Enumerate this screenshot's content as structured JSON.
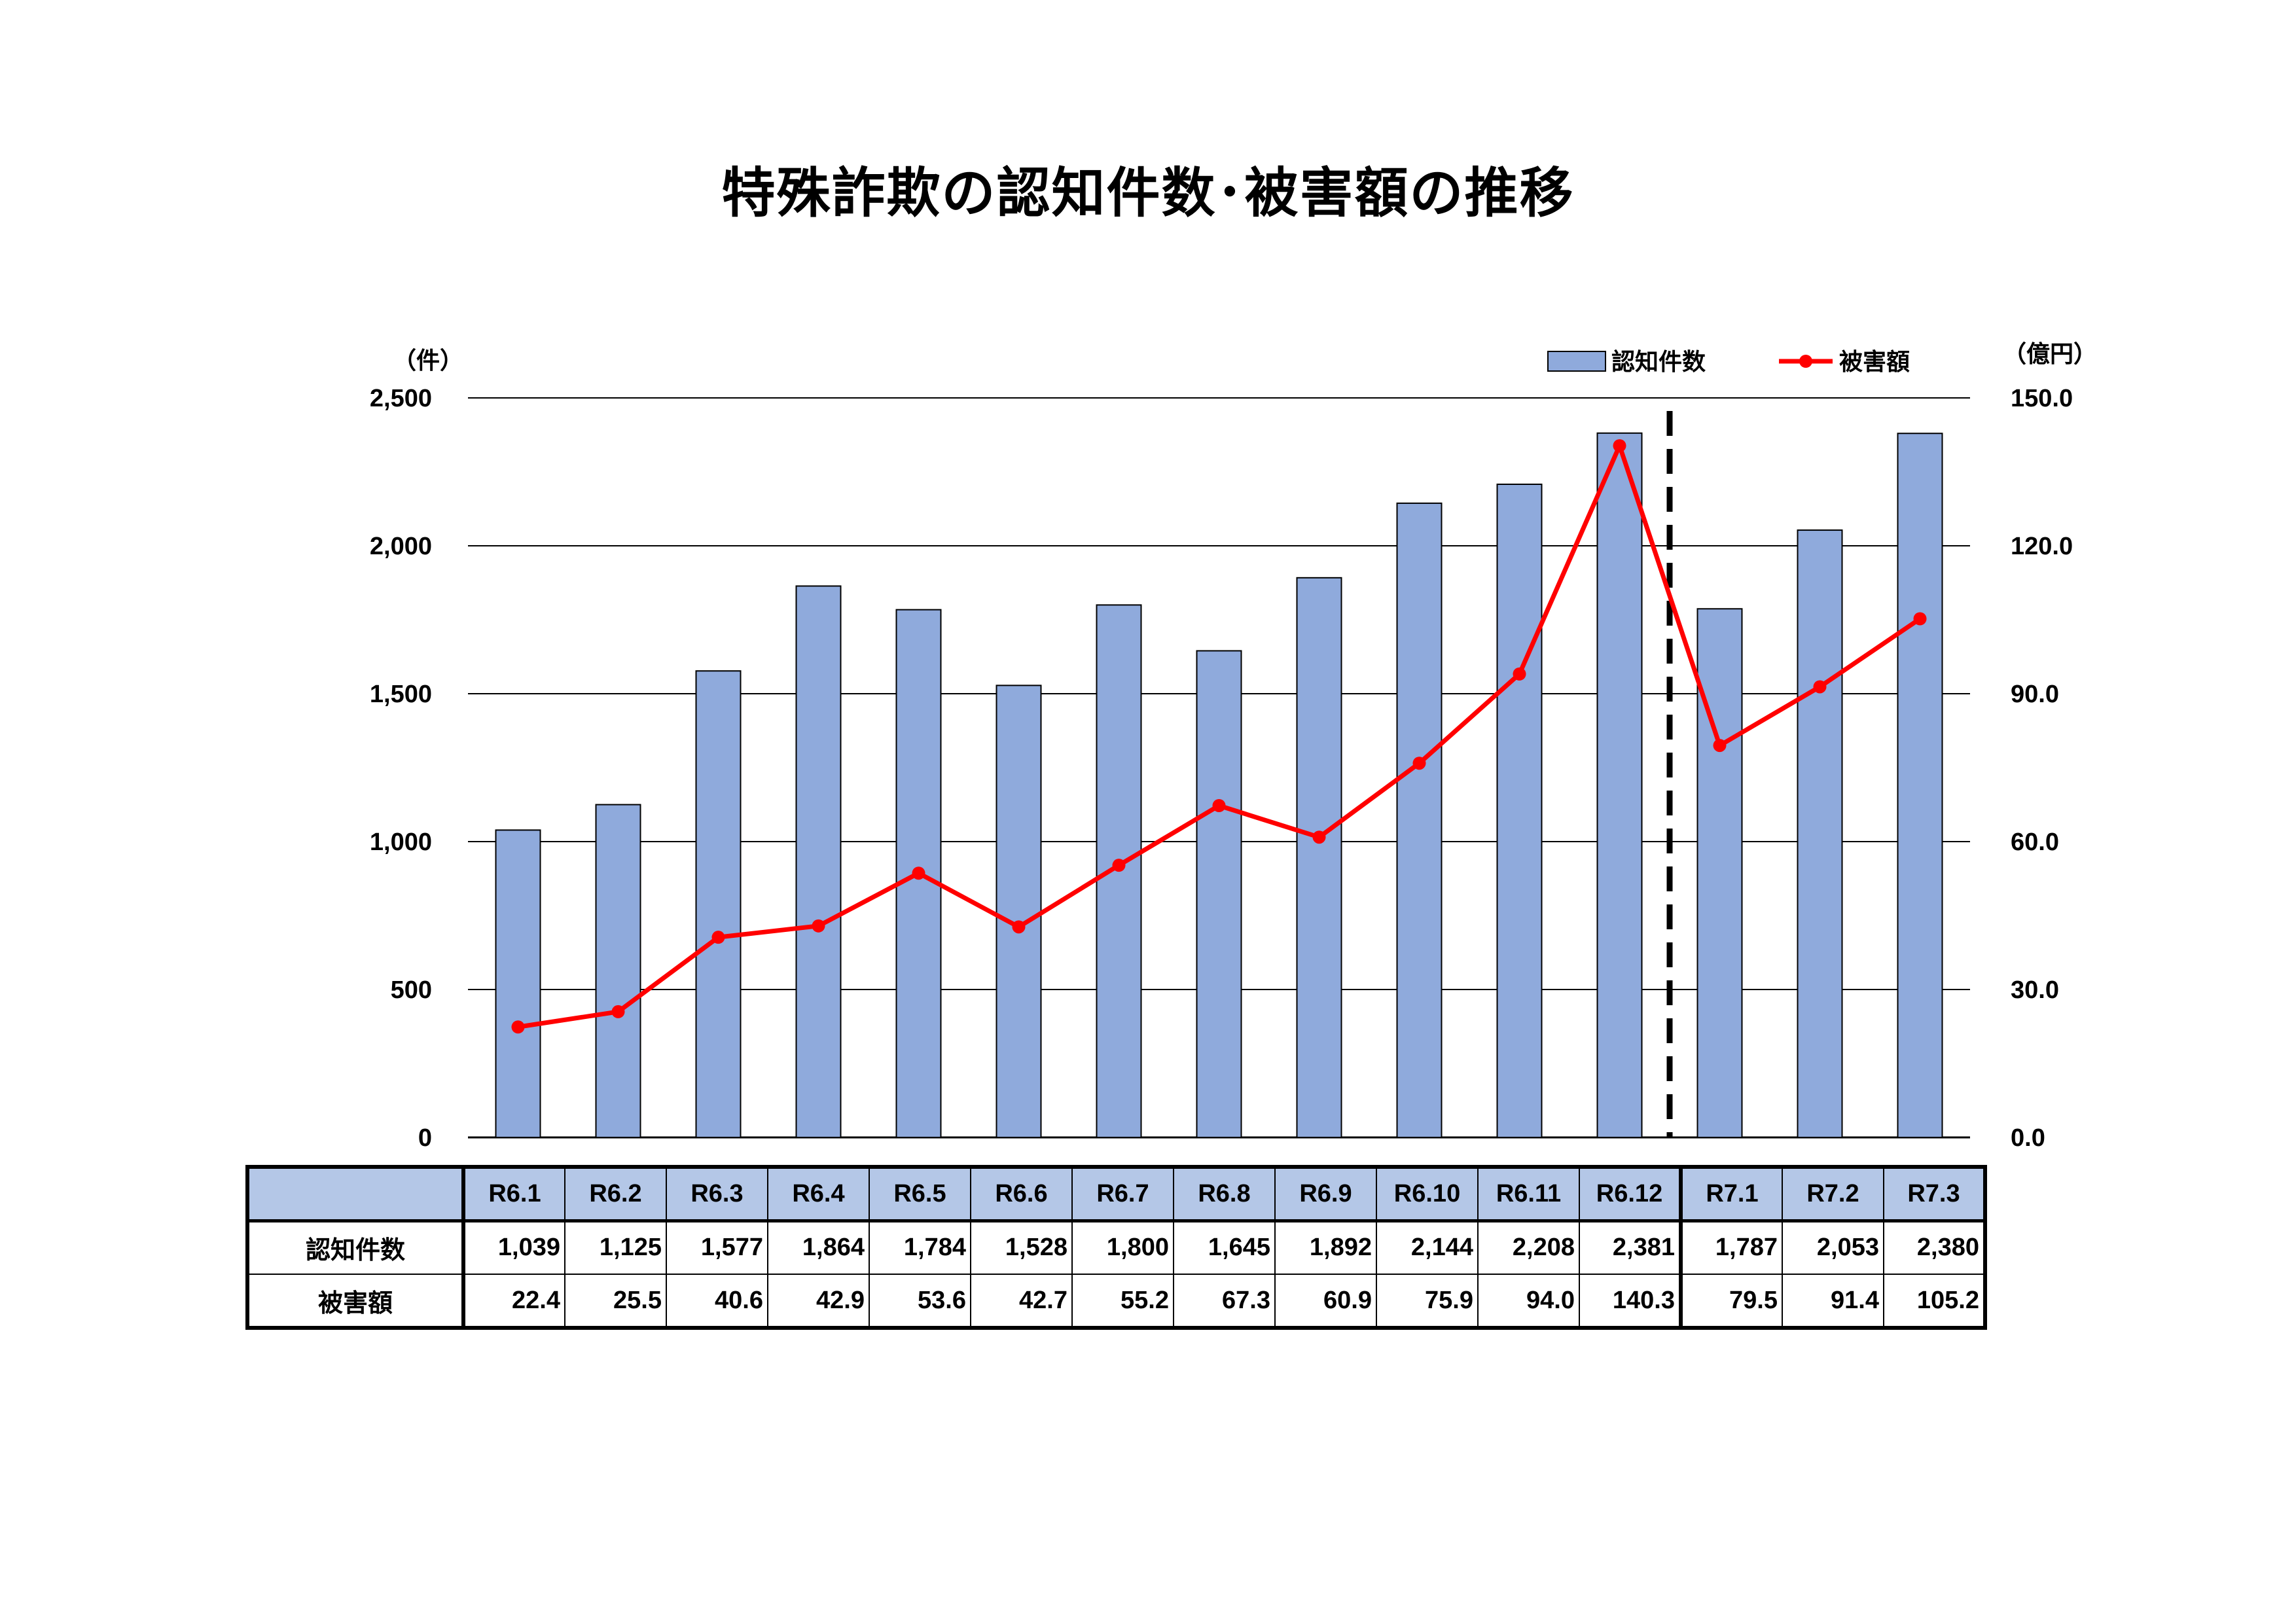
{
  "title": "特殊詐欺の認知件数･被害額の推移",
  "chart_data": {
    "type": "bar+line",
    "categories": [
      "R6.1",
      "R6.2",
      "R6.3",
      "R6.4",
      "R6.5",
      "R6.6",
      "R6.7",
      "R6.8",
      "R6.9",
      "R6.10",
      "R6.11",
      "R6.12",
      "R7.1",
      "R7.2",
      "R7.3"
    ],
    "series": [
      {
        "name": "認知件数",
        "type": "bar",
        "axis": "left",
        "color": "#8faadc",
        "values": [
          1039,
          1125,
          1577,
          1864,
          1784,
          1528,
          1800,
          1645,
          1892,
          2144,
          2208,
          2381,
          1787,
          2053,
          2380
        ]
      },
      {
        "name": "被害額",
        "type": "line",
        "axis": "right",
        "color": "#ff0000",
        "values": [
          22.4,
          25.5,
          40.6,
          42.9,
          53.6,
          42.7,
          55.2,
          67.3,
          60.9,
          75.9,
          94.0,
          140.3,
          79.5,
          91.4,
          105.2
        ]
      }
    ],
    "left_axis": {
      "unit": "（件）",
      "ylim": [
        0,
        2500
      ],
      "ticks": [
        {
          "v": 0,
          "label": "0"
        },
        {
          "v": 500,
          "label": "500"
        },
        {
          "v": 1000,
          "label": "1,000"
        },
        {
          "v": 1500,
          "label": "1,500"
        },
        {
          "v": 2000,
          "label": "2,000"
        },
        {
          "v": 2500,
          "label": "2,500"
        }
      ]
    },
    "right_axis": {
      "unit": "（億円）",
      "ylim": [
        0,
        150
      ],
      "ticks": [
        {
          "v": 0,
          "label": "0.0"
        },
        {
          "v": 30,
          "label": "30.0"
        },
        {
          "v": 60,
          "label": "60.0"
        },
        {
          "v": 90,
          "label": "90.0"
        },
        {
          "v": 120,
          "label": "120.0"
        },
        {
          "v": 150,
          "label": "150.0"
        }
      ]
    },
    "grid": true,
    "legend": "top-right",
    "divider_after_category": "R6.12"
  },
  "table": {
    "corner": "",
    "row_labels": [
      "認知件数",
      "被害額"
    ],
    "rows": [
      [
        "1,039",
        "1,125",
        "1,577",
        "1,864",
        "1,784",
        "1,528",
        "1,800",
        "1,645",
        "1,892",
        "2,144",
        "2,208",
        "2,381",
        "1,787",
        "2,053",
        "2,380"
      ],
      [
        "22.4",
        "25.5",
        "40.6",
        "42.9",
        "53.6",
        "42.7",
        "55.2",
        "67.3",
        "60.9",
        "75.9",
        "94.0",
        "140.3",
        "79.5",
        "91.4",
        "105.2"
      ]
    ]
  }
}
